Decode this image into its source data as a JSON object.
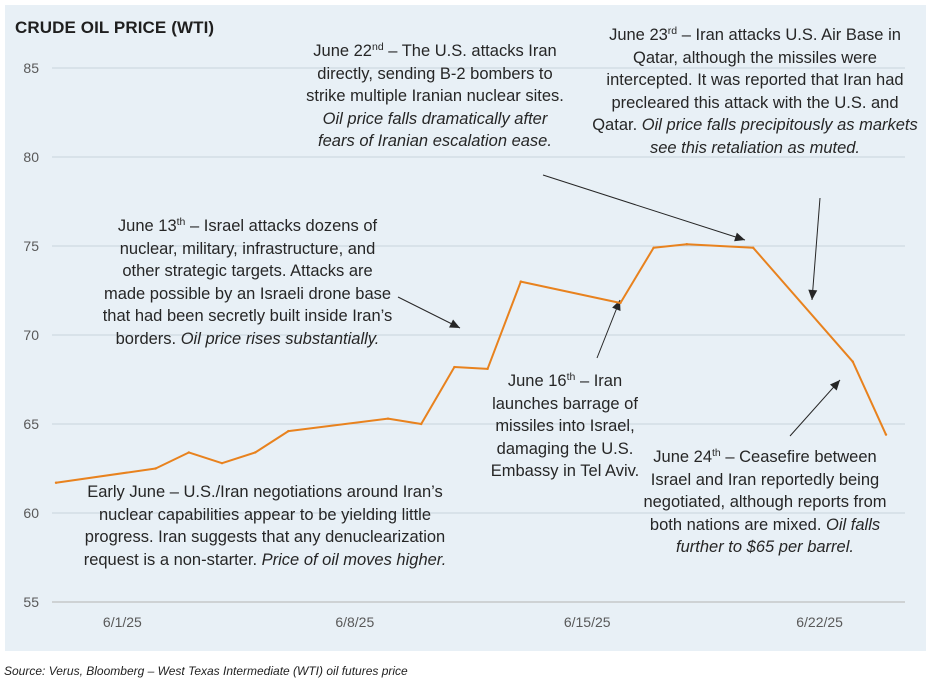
{
  "chart_data": {
    "type": "line",
    "title": "CRUDE OIL PRICE (WTI)",
    "xlabel": "",
    "ylabel": "",
    "ylim": [
      55,
      85
    ],
    "yticks": [
      "55",
      "60",
      "65",
      "70",
      "75",
      "80",
      "85"
    ],
    "xtick_labels": [
      "6/1/25",
      "6/8/25",
      "6/15/25",
      "6/22/25"
    ],
    "grid": "horizontal",
    "line_color": "#e8821e",
    "x": [
      "2025-05-30",
      "2025-06-02",
      "2025-06-03",
      "2025-06-04",
      "2025-06-05",
      "2025-06-06",
      "2025-06-09",
      "2025-06-10",
      "2025-06-11",
      "2025-06-12",
      "2025-06-13",
      "2025-06-16",
      "2025-06-17",
      "2025-06-18",
      "2025-06-20",
      "2025-06-23",
      "2025-06-24"
    ],
    "values": [
      61.7,
      62.5,
      63.4,
      62.8,
      63.4,
      64.6,
      65.3,
      65.0,
      68.2,
      68.1,
      73.0,
      71.8,
      74.9,
      75.1,
      74.9,
      68.5,
      64.4
    ],
    "series": [
      {
        "values": [
          61.7,
          62.5,
          63.4,
          62.8,
          63.4,
          64.6,
          65.3,
          65.0,
          68.2,
          68.1,
          73.0,
          71.8,
          74.9,
          75.1,
          74.9,
          68.5,
          64.4
        ]
      }
    ]
  },
  "annotations": {
    "early_june": {
      "text": "Early June – U.S./Iran negotiations around Iran’s nuclear capabilities appear to be yielding little progress. Iran suggests that any denuclearization request is a non-starter.",
      "italic": "Price of oil moves higher."
    },
    "june13": {
      "date": "June 13",
      "ordinal": "th",
      "text": "– Israel attacks dozens of nuclear, military, infrastructure, and other strategic targets. Attacks are made possible by an Israeli drone base that had been secretly built inside Iran’s borders.",
      "italic": "Oil price rises substantially."
    },
    "june16": {
      "date": "June 16",
      "ordinal": "th",
      "text": "– Iran launches barrage of missiles into Israel, damaging the U.S. Embassy in Tel Aviv."
    },
    "june22": {
      "date": "June 22",
      "ordinal": "nd",
      "text": "– The U.S. attacks Iran directly, sending B-2 bombers to strike multiple Iranian nuclear sites.",
      "italic": "Oil price falls dramatically after fears of Iranian escalation ease."
    },
    "june23": {
      "date": "June 23",
      "ordinal": "rd",
      "text": "– Iran attacks U.S. Air Base in Qatar, although the missiles were intercepted. It was reported that Iran had precleared this attack with the U.S. and Qatar.",
      "italic": "Oil price falls precipitously as markets see this retaliation as muted."
    },
    "june24": {
      "date": "June 24",
      "ordinal": "th",
      "text": "– Ceasefire between Israel and Iran reportedly being negotiated, although reports from both nations are mixed.",
      "italic": "Oil falls further to $65 per barrel."
    }
  },
  "source": "Source: Verus, Bloomberg – West Texas Intermediate (WTI) oil futures price"
}
